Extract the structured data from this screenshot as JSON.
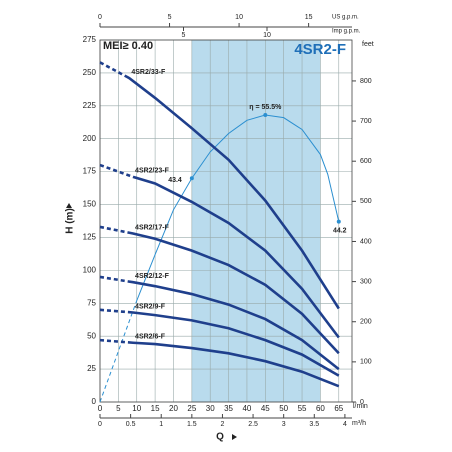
{
  "chart_data": {
    "type": "line",
    "title": "4SR2-F",
    "subtitle": "MEI≥ 0.40",
    "ylabel": "H (m)",
    "xlabel": "Q",
    "x_unit": "l/min",
    "y2label": "feet",
    "top_label": "US g.p.m.",
    "top2_label": "Imp g.p.m.",
    "bottom2_label": "m³/h",
    "xlim": [
      0,
      68.6
    ],
    "ylim": [
      0,
      275
    ],
    "y2lim": [
      0,
      902
    ],
    "xticks": [
      0,
      5,
      10,
      15,
      20,
      25,
      30,
      35,
      40,
      45,
      50,
      55,
      60,
      65
    ],
    "yticks": [
      0,
      25,
      50,
      75,
      100,
      125,
      150,
      175,
      200,
      225,
      250,
      275
    ],
    "y2ticks": [
      0,
      100,
      200,
      300,
      400,
      500,
      600,
      700,
      800
    ],
    "top_lim": [
      0,
      18.12
    ],
    "top_ticks": [
      0,
      5,
      10,
      15
    ],
    "top2_lim": [
      0,
      15.09
    ],
    "top2_ticks": [
      5,
      10
    ],
    "bottom2_lim": [
      0,
      4.116
    ],
    "bottom2_ticks": [
      0,
      0.5,
      1,
      1.5,
      2,
      2.5,
      3,
      3.5,
      4
    ],
    "grid": true,
    "shaded_range": [
      25,
      60
    ],
    "shade_color": "#a8d2e8",
    "series": [
      {
        "name": "4SR2/33-F",
        "color": "#1f3f8c",
        "x": [
          0,
          8,
          15,
          25,
          35,
          45,
          55,
          65
        ],
        "values": [
          258,
          246,
          231,
          208,
          184,
          153,
          115,
          71
        ]
      },
      {
        "name": "4SR2/23-F",
        "color": "#1f3f8c",
        "x": [
          0,
          9,
          15,
          25,
          35,
          45,
          55,
          65
        ],
        "values": [
          180,
          171,
          166,
          152,
          136,
          115,
          86,
          49
        ]
      },
      {
        "name": "4SR2/17-F",
        "color": "#1f3f8c",
        "x": [
          0,
          9,
          15,
          25,
          35,
          45,
          55,
          65
        ],
        "values": [
          133,
          128,
          124,
          115,
          104,
          89,
          67,
          37
        ]
      },
      {
        "name": "4SR2/12-F",
        "color": "#1f3f8c",
        "x": [
          0,
          9,
          15,
          25,
          35,
          45,
          55,
          65
        ],
        "values": [
          95,
          91,
          88,
          82,
          74,
          63,
          47,
          25
        ]
      },
      {
        "name": "4SR2/9-F",
        "color": "#1f3f8c",
        "x": [
          0,
          9,
          15,
          25,
          35,
          45,
          55,
          65
        ],
        "values": [
          70,
          68,
          66,
          62,
          56,
          47,
          36,
          20
        ]
      },
      {
        "name": "4SR2/6-F",
        "color": "#1f3f8c",
        "x": [
          0,
          9,
          15,
          25,
          35,
          45,
          55,
          65
        ],
        "values": [
          47,
          45,
          44,
          41,
          37,
          31,
          23,
          12
        ]
      }
    ],
    "efficiency": {
      "color": "#2b8fd0",
      "x": [
        0,
        10,
        15,
        20,
        25,
        30,
        35,
        40,
        45,
        50,
        55,
        60,
        62,
        65
      ],
      "values": [
        0,
        77,
        112,
        146,
        170,
        190,
        204,
        214,
        218,
        216,
        207,
        188,
        173,
        137
      ]
    },
    "annotations": [
      "η = 55.5%",
      "43.4",
      "44.2"
    ]
  }
}
